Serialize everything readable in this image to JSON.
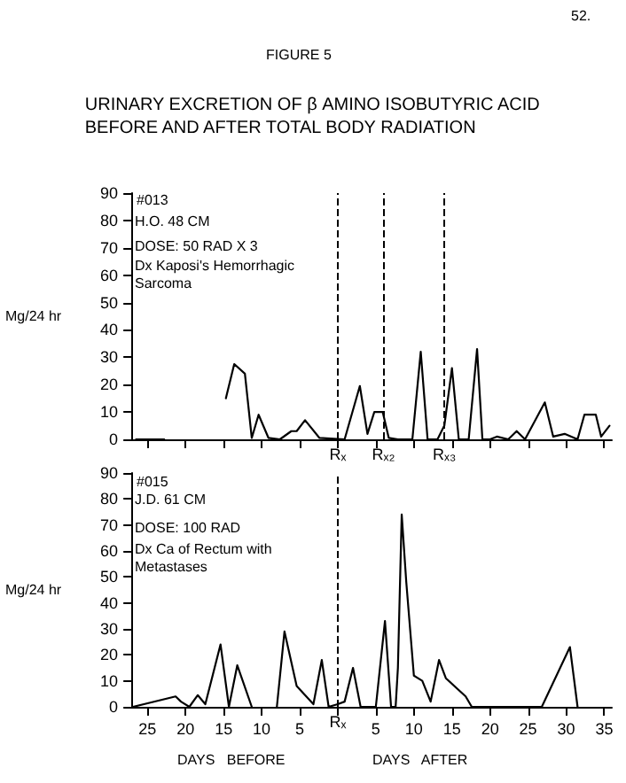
{
  "chart_data": [
    {
      "type": "line",
      "title": "URINARY EXCRETION OF β AMINO ISOBUTYRIC ACID\nBEFORE AND AFTER TOTAL BODY RADIATION",
      "ylabel": "Mg/24 hr",
      "annotations": [
        "52.",
        "FIGURE 5",
        "#013",
        "H.O. 48 CM",
        "DOSE: 50 RAD X 3",
        "Dx Kaposi's Hemorrhagic Sarcoma"
      ],
      "x": [
        -26.5,
        -22.8,
        -22.7,
        -14.7,
        -13.6,
        -12.2,
        -11.3,
        -10.4,
        -9.1,
        -7.6,
        -6.1,
        -5.4,
        -4.3,
        -2.4,
        0.9,
        2.9,
        3.9,
        4.8,
        5.9,
        6.7,
        7.9,
        9.8,
        10.9,
        11.8,
        13.1,
        14,
        15,
        15.9,
        17.2,
        18.3,
        19,
        20,
        20.9,
        22.4,
        23.5,
        24.6,
        27.2,
        28.3,
        29.8,
        31.5,
        32.4,
        33.9,
        34.6,
        35.7
      ],
      "series": [
        {
          "color": "#000000",
          "values": [
            0,
            0,
            null,
            15,
            27.5,
            24,
            0.5,
            9,
            0.5,
            0,
            3,
            3,
            7,
            0.5,
            0,
            19.5,
            2,
            10,
            10,
            0.5,
            0,
            0,
            32,
            0,
            0,
            5,
            26,
            0,
            0,
            33,
            0,
            0,
            1,
            0,
            3,
            0,
            13.5,
            1,
            2,
            0,
            9,
            9,
            1,
            5
          ]
        }
      ],
      "xlim": [
        -27,
        36
      ],
      "xticks": [
        {
          "value": -25,
          "label": "25"
        },
        {
          "value": -20,
          "label": "20"
        },
        {
          "value": -15,
          "label": "15"
        },
        {
          "value": -10,
          "label": "10"
        },
        {
          "value": -5,
          "label": "5"
        },
        {
          "value": 0,
          "label": null
        },
        5,
        10,
        15,
        20,
        25,
        30,
        35
      ],
      "ylim": [
        0,
        90
      ],
      "yticks": [
        0,
        10,
        20,
        30,
        40,
        50,
        60,
        70,
        80,
        90
      ],
      "tick_labels": "y",
      "marker": "none",
      "line_style": "solid",
      "grid": false,
      "ref_lines": [
        {
          "axis": "x",
          "value": 0,
          "label": "Rₓ",
          "line_style": "dashed"
        },
        {
          "axis": "x",
          "value": 6,
          "label": "Rₓ₂",
          "line_style": "dashed"
        },
        {
          "axis": "x",
          "value": 14,
          "label": "Rₓ₃",
          "line_style": "dashed"
        }
      ]
    },
    {
      "type": "line",
      "ylabel": "Mg/24 hr",
      "annotations": [
        "#015",
        "J.D. 61 CM",
        "DOSE: 100 RAD",
        "Dx Ca of Rectum with Metastases",
        "DAYS   BEFORE",
        "DAYS   AFTER"
      ],
      "x": [
        -26.9,
        -21.3,
        -20.6,
        -19.5,
        -18.4,
        -17.4,
        -15.4,
        -14.3,
        -13.2,
        -11.3,
        -10,
        -8,
        -7,
        -5.4,
        -3.2,
        -2.1,
        -1.2,
        0,
        0.9,
        2,
        3,
        5,
        6.2,
        7,
        7.6,
        7.9,
        8.4,
        9,
        10,
        11.1,
        12.2,
        13.3,
        14.2,
        16.8,
        17.6,
        26.8,
        30.5,
        31.5
      ],
      "series": [
        {
          "color": "#000000",
          "values": [
            0,
            4,
            2,
            0,
            4.5,
            1,
            24,
            0,
            16,
            0,
            null,
            0,
            29,
            8,
            1,
            18,
            0,
            1,
            2,
            15,
            0,
            0,
            33,
            0,
            0,
            15,
            74,
            48,
            12,
            10,
            2,
            18,
            11,
            4,
            0,
            0,
            23,
            0
          ]
        }
      ],
      "xlim": [
        -27,
        36
      ],
      "xticks": [
        {
          "value": -25,
          "label": "25"
        },
        {
          "value": -20,
          "label": "20"
        },
        {
          "value": -15,
          "label": "15"
        },
        {
          "value": -10,
          "label": "10"
        },
        {
          "value": -5,
          "label": "5"
        },
        {
          "value": 0,
          "label": null
        },
        5,
        10,
        15,
        20,
        25,
        30,
        35
      ],
      "ylim": [
        0,
        90
      ],
      "yticks": [
        0,
        10,
        20,
        30,
        40,
        50,
        60,
        70,
        80,
        90
      ],
      "marker": "none",
      "line_style": "solid",
      "grid": false,
      "ref_lines": [
        {
          "axis": "x",
          "value": 0,
          "label": "Rₓ",
          "line_style": "dashed"
        }
      ]
    }
  ]
}
